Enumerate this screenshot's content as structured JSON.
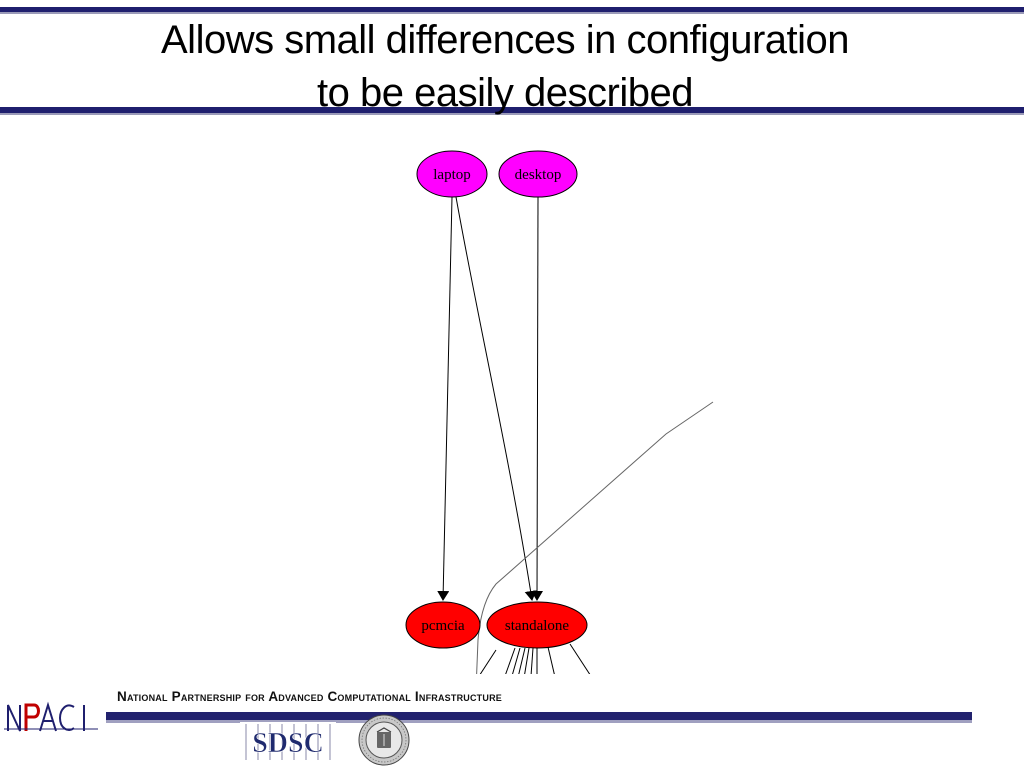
{
  "title": {
    "line1": "Allows small differences in configuration",
    "line2": "to be easily described"
  },
  "diagram": {
    "nodes": [
      {
        "id": "laptop",
        "label": "laptop",
        "color": "#ff00ff"
      },
      {
        "id": "desktop",
        "label": "desktop",
        "color": "#ff00ff"
      },
      {
        "id": "pcmcia",
        "label": "pcmcia",
        "color": "#ff0000"
      },
      {
        "id": "standalone",
        "label": "standalone",
        "color": "#ff0000"
      }
    ],
    "edges": [
      {
        "from": "laptop",
        "to": "pcmcia"
      },
      {
        "from": "laptop",
        "to": "standalone"
      },
      {
        "from": "desktop",
        "to": "standalone"
      }
    ]
  },
  "footer": {
    "organization": "National Partnership for Advanced Computational Infrastructure",
    "logos": [
      "NPACI",
      "SDSC",
      "UC seal"
    ]
  },
  "colors": {
    "rule": "#1f1f6e",
    "node_top": "#ff00ff",
    "node_bottom": "#ff0000"
  }
}
